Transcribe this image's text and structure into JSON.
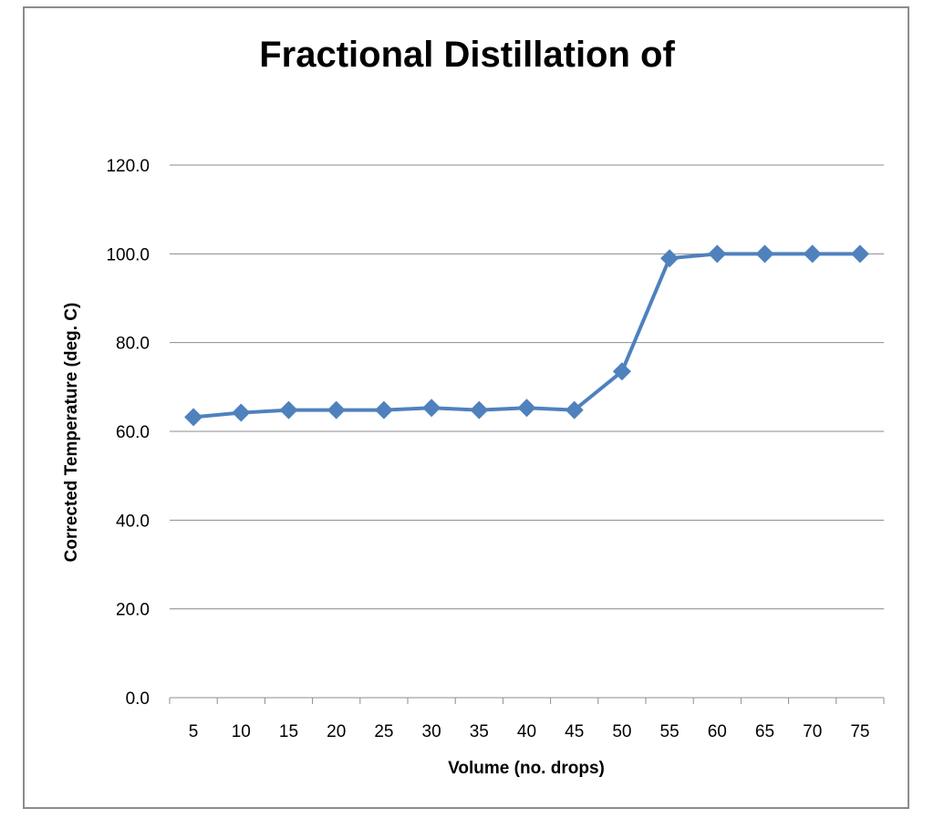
{
  "chart_data": {
    "type": "line",
    "title": "Fractional Distillation of",
    "xlabel": "Volume (no. drops)",
    "ylabel": "Corrected Temperature (deg. C)",
    "categories": [
      "5",
      "10",
      "15",
      "20",
      "25",
      "30",
      "35",
      "40",
      "45",
      "50",
      "55",
      "60",
      "65",
      "70",
      "75"
    ],
    "values": [
      63.2,
      64.2,
      64.8,
      64.8,
      64.8,
      65.3,
      64.8,
      65.3,
      64.8,
      73.5,
      99.0,
      100.0,
      100.0,
      100.0,
      100.0
    ],
    "ylim": [
      0,
      120
    ],
    "yticks": [
      "0.0",
      "20.0",
      "40.0",
      "60.0",
      "80.0",
      "100.0",
      "120.0"
    ],
    "grid": true,
    "marker": "diamond",
    "color": "#4f81bd"
  }
}
